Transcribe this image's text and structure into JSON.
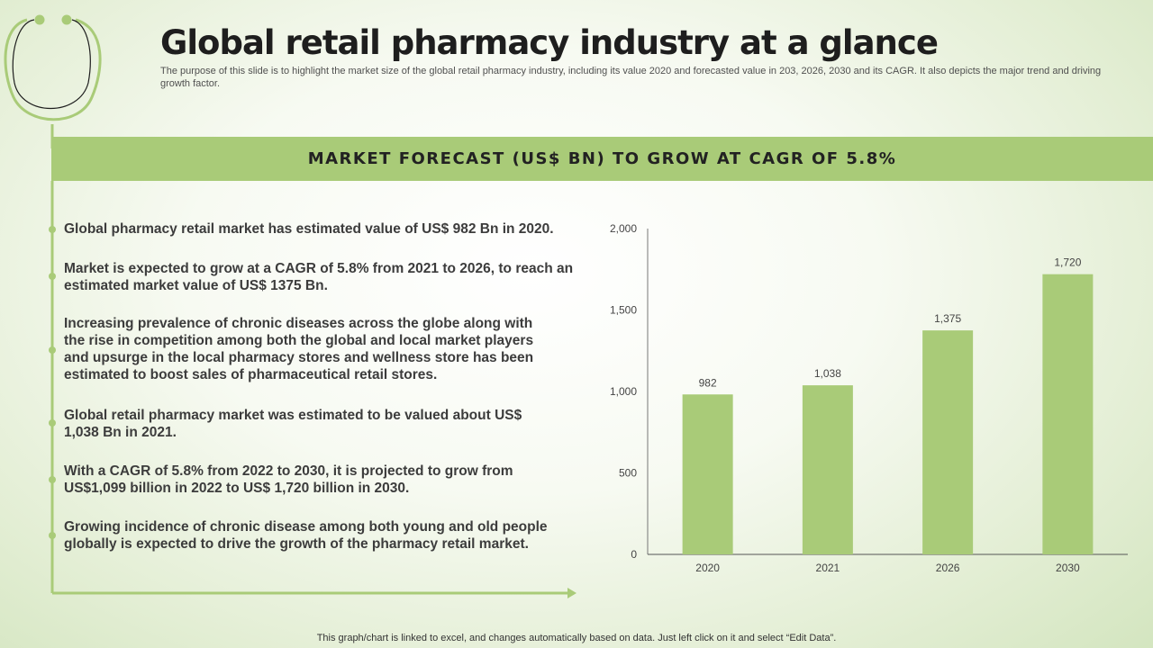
{
  "slide": {
    "title": "Global retail pharmacy industry at a glance",
    "subtitle": "The purpose of this slide is to highlight the market size of the global retail pharmacy industry, including its value 2020 and forecasted value in 203, 2026, 2030 and its CAGR. It also depicts the major trend and driving growth factor.",
    "banner": "MARKET FORECAST (US$ BN) TO GROW AT CAGR OF 5.8%",
    "footer": "This graph/chart is linked to excel, and changes automatically based on data. Just left click on it and select “Edit Data”."
  },
  "bullets": [
    "Global pharmacy retail market has estimated value of US$ 982 Bn in 2020.",
    "Market is expected to grow at a CAGR of 5.8% from 2021 to 2026, to reach an estimated market value of US$ 1375 Bn.",
    "Increasing prevalence of chronic diseases across the globe along with the rise in competition among both the global and local market players and upsurge in the local pharmacy stores and wellness store has been estimated to boost sales of pharmaceutical retail stores.",
    "Global retail pharmacy market was estimated to be valued about US$ 1,038 Bn in 2021.",
    "With a CAGR of 5.8% from 2022 to 2030, it is projected to grow from US$1,099 billion in 2022 to US$ 1,720 billion in 2030.",
    "Growing incidence of chronic disease among both young and old people globally is expected to drive the growth of the pharmacy retail market."
  ],
  "colors": {
    "accent": "#a9cb78",
    "text": "#3c3c3c"
  },
  "icons": {
    "decor": "stethoscope-icon"
  },
  "chart_data": {
    "type": "bar",
    "categories": [
      "2020",
      "2021",
      "2026",
      "2030"
    ],
    "values": [
      982,
      1038,
      1375,
      1720
    ],
    "data_labels": [
      "982",
      "1,038",
      "1,375",
      "1,720"
    ],
    "y_ticks": [
      0,
      500,
      1000,
      1500,
      2000
    ],
    "y_tick_labels": [
      "0",
      "500",
      "1,000",
      "1,500",
      "2,000"
    ],
    "ylim": [
      0,
      2000
    ],
    "title": "",
    "xlabel": "",
    "ylabel": "",
    "color": "#a9cb78",
    "grid": false,
    "legend": "none"
  }
}
